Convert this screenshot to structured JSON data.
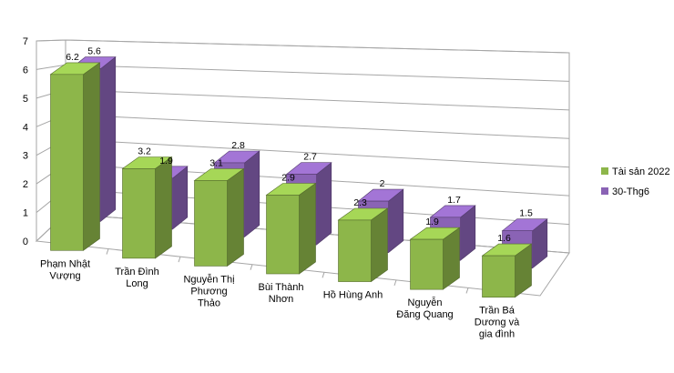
{
  "chart_data": {
    "type": "bar",
    "categories": [
      [
        "Phạm Nhật",
        "Vượng"
      ],
      [
        "Trần Đình",
        "Long"
      ],
      [
        "Nguyễn Thị",
        "Phương",
        "Thảo"
      ],
      [
        "Bùi Thành",
        "Nhơn"
      ],
      [
        "Hồ Hùng Anh"
      ],
      [
        "Nguyễn",
        "Đăng Quang"
      ],
      [
        "Trần Bá",
        "Dương và",
        "gia đình"
      ]
    ],
    "series": [
      {
        "name": "Tài sản 2022",
        "color": "#8db64a",
        "values": [
          6.2,
          3.2,
          3.1,
          2.9,
          2.3,
          1.9,
          1.6
        ]
      },
      {
        "name": "30-Thg6",
        "color": "#8a63b5",
        "values": [
          5.6,
          1.9,
          2.8,
          2.7,
          2.0,
          1.7,
          1.5
        ]
      }
    ],
    "data_labels": [
      [
        "6.2",
        "3.2",
        "3.1",
        "2.9",
        "2.3",
        "1.9",
        "1.6"
      ],
      [
        "5.6",
        "1.9",
        "2.8",
        "2.7",
        "2",
        "1.7",
        "1.5"
      ]
    ],
    "y_ticks": [
      "0",
      "1",
      "2",
      "3",
      "4",
      "5",
      "6",
      "7"
    ],
    "ylim": [
      0,
      7
    ],
    "grid": true,
    "legend_position": "right",
    "style": "3d-perspective"
  }
}
